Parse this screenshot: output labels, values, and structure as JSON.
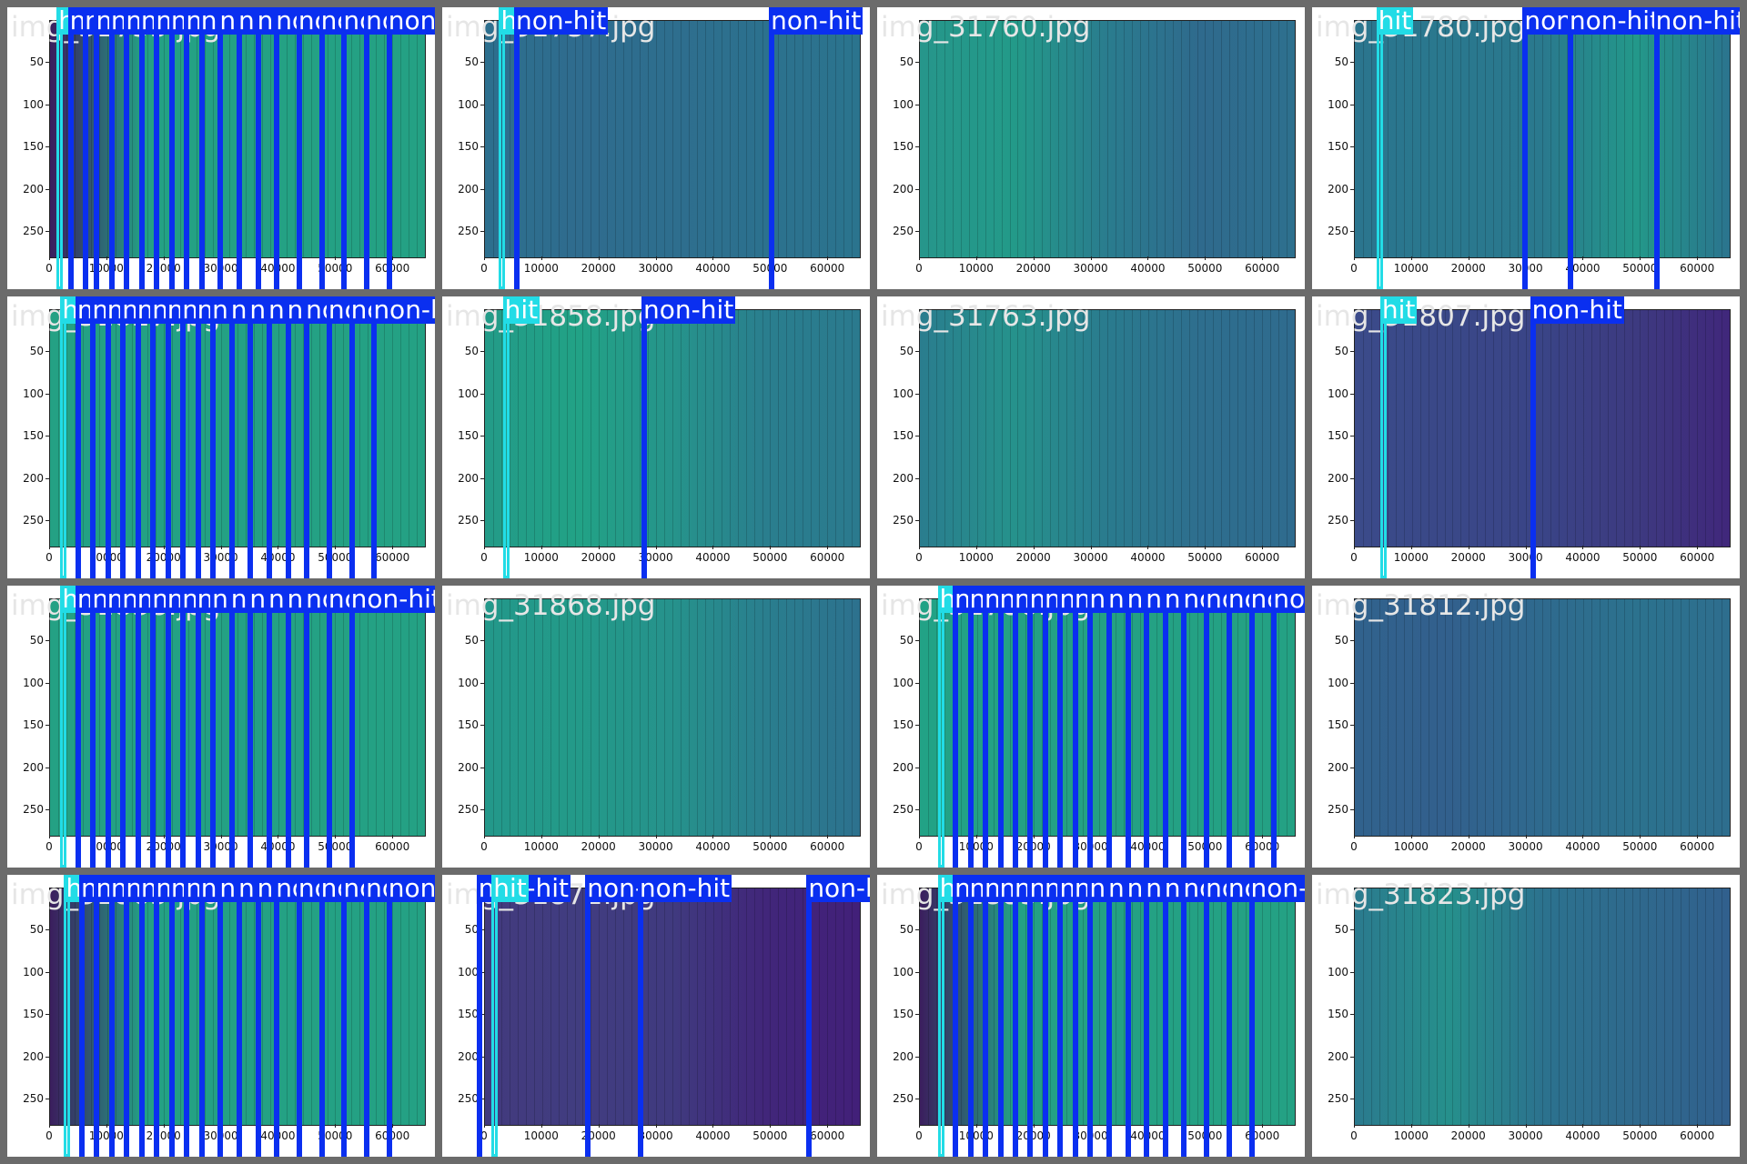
{
  "labels": {
    "hit": "hit",
    "non_hit": "non-hit"
  },
  "colors": {
    "hit": "#22dce6",
    "non_hit": "#0a2ff0",
    "frame": "#6b6b6b"
  },
  "axes": {
    "x_ticks": [
      "0",
      "10000",
      "20000",
      "30000",
      "40000",
      "50000",
      "60000"
    ],
    "y_ticks": [
      "50",
      "100",
      "150",
      "200",
      "250"
    ]
  },
  "tiles": [
    {
      "filename": "img_31755.jpg",
      "fill": [
        "#3b1e5e",
        "#24a184",
        "#24a184",
        "#24a184",
        "#24a184"
      ],
      "detections": [
        {
          "label": "hit",
          "x": 0.02
        },
        {
          "label": "non-hit",
          "x": 0.05
        },
        {
          "label": "non-hit",
          "x": 0.09
        },
        {
          "label": "non-hit",
          "x": 0.12
        },
        {
          "label": "non-hit",
          "x": 0.16
        },
        {
          "label": "non-hit",
          "x": 0.2
        },
        {
          "label": "non-hit",
          "x": 0.24
        },
        {
          "label": "non-hit",
          "x": 0.28
        },
        {
          "label": "non-hit",
          "x": 0.32
        },
        {
          "label": "non-hit",
          "x": 0.36
        },
        {
          "label": "non-hit",
          "x": 0.4
        },
        {
          "label": "non-hit",
          "x": 0.45
        },
        {
          "label": "non-hit",
          "x": 0.5
        },
        {
          "label": "non-hit",
          "x": 0.55
        },
        {
          "label": "non-hit",
          "x": 0.6
        },
        {
          "label": "non-hit",
          "x": 0.66
        },
        {
          "label": "non-hit",
          "x": 0.72
        },
        {
          "label": "non-hit",
          "x": 0.78
        },
        {
          "label": "non-hit",
          "x": 0.84
        },
        {
          "label": "non-hit",
          "x": 0.9
        }
      ]
    },
    {
      "filename": "img_31757.jpg",
      "fill": [
        "#2d6f8e",
        "#2f6c8e",
        "#2e6e8e",
        "#2c718e",
        "#2b748e"
      ],
      "detections": [
        {
          "label": "hit",
          "x": 0.04
        },
        {
          "label": "non-hit",
          "x": 0.08
        },
        {
          "label": "non-hit",
          "x": 0.76
        }
      ]
    },
    {
      "filename": "img_31760.jpg",
      "fill": [
        "#26968b",
        "#239a89",
        "#2a7c8e",
        "#2f6a8d",
        "#2e708e"
      ],
      "detections": []
    },
    {
      "filename": "img_31780.jpg",
      "fill": [
        "#2b758e",
        "#2a788e",
        "#2a798e",
        "#23988a",
        "#2b748e"
      ],
      "detections": [
        {
          "label": "hit",
          "x": 0.06
        },
        {
          "label": "non-hit",
          "x": 0.45
        },
        {
          "label": "non-hit",
          "x": 0.57
        },
        {
          "label": "non-hit",
          "x": 0.8
        }
      ]
    },
    {
      "filename": "img_31827.jpg",
      "fill": [
        "#24a184",
        "#24a184",
        "#24a184",
        "#24a184",
        "#24a184"
      ],
      "detections": [
        {
          "label": "hit",
          "x": 0.03
        },
        {
          "label": "non-hit",
          "x": 0.07
        },
        {
          "label": "non-hit",
          "x": 0.11
        },
        {
          "label": "non-hit",
          "x": 0.15
        },
        {
          "label": "non-hit",
          "x": 0.19
        },
        {
          "label": "non-hit",
          "x": 0.23
        },
        {
          "label": "non-hit",
          "x": 0.27
        },
        {
          "label": "non-hit",
          "x": 0.31
        },
        {
          "label": "non-hit",
          "x": 0.35
        },
        {
          "label": "non-hit",
          "x": 0.39
        },
        {
          "label": "non-hit",
          "x": 0.43
        },
        {
          "label": "non-hit",
          "x": 0.48
        },
        {
          "label": "non-hit",
          "x": 0.53
        },
        {
          "label": "non-hit",
          "x": 0.58
        },
        {
          "label": "non-hit",
          "x": 0.63
        },
        {
          "label": "non-hit",
          "x": 0.68
        },
        {
          "label": "non-hit",
          "x": 0.74
        },
        {
          "label": "non-hit",
          "x": 0.8
        },
        {
          "label": "non-hit",
          "x": 0.86
        }
      ]
    },
    {
      "filename": "img_31858.jpg",
      "fill": [
        "#239b88",
        "#22a286",
        "#26948b",
        "#2a7e8e",
        "#2b7a8e"
      ],
      "detections": [
        {
          "label": "hit",
          "x": 0.05
        },
        {
          "label": "non-hit",
          "x": 0.42
        }
      ]
    },
    {
      "filename": "img_31763.jpg",
      "fill": [
        "#2a7d8e",
        "#26928c",
        "#2a7b8e",
        "#2e6e8e",
        "#2f6b8e"
      ],
      "detections": []
    },
    {
      "filename": "img_31807.jpg",
      "fill": [
        "#3b4b8a",
        "#3a4888",
        "#3a4487",
        "#3d3a80",
        "#40277b"
      ],
      "detections": [
        {
          "label": "hit",
          "x": 0.07
        },
        {
          "label": "non-hit",
          "x": 0.47
        }
      ]
    },
    {
      "filename": "img_31838.jpg",
      "fill": [
        "#24a184",
        "#24a184",
        "#24a184",
        "#24a184",
        "#24a184"
      ],
      "detections": [
        {
          "label": "hit",
          "x": 0.03
        },
        {
          "label": "non-hit",
          "x": 0.07
        },
        {
          "label": "non-hit",
          "x": 0.11
        },
        {
          "label": "non-hit",
          "x": 0.15
        },
        {
          "label": "non-hit",
          "x": 0.19
        },
        {
          "label": "non-hit",
          "x": 0.23
        },
        {
          "label": "non-hit",
          "x": 0.27
        },
        {
          "label": "non-hit",
          "x": 0.31
        },
        {
          "label": "non-hit",
          "x": 0.35
        },
        {
          "label": "non-hit",
          "x": 0.39
        },
        {
          "label": "non-hit",
          "x": 0.43
        },
        {
          "label": "non-hit",
          "x": 0.48
        },
        {
          "label": "non-hit",
          "x": 0.53
        },
        {
          "label": "non-hit",
          "x": 0.58
        },
        {
          "label": "non-hit",
          "x": 0.63
        },
        {
          "label": "non-hit",
          "x": 0.68
        },
        {
          "label": "non-hit",
          "x": 0.74
        },
        {
          "label": "non-hit",
          "x": 0.8
        }
      ]
    },
    {
      "filename": "img_31868.jpg",
      "fill": [
        "#23988a",
        "#239a89",
        "#26928c",
        "#2a7e8e",
        "#2d718e"
      ],
      "detections": []
    },
    {
      "filename": "img_31786.jpg",
      "fill": [
        "#22a286",
        "#24a184",
        "#24a184",
        "#24a184",
        "#24a184"
      ],
      "detections": [
        {
          "label": "hit",
          "x": 0.05
        },
        {
          "label": "non-hit",
          "x": 0.09
        },
        {
          "label": "non-hit",
          "x": 0.13
        },
        {
          "label": "non-hit",
          "x": 0.17
        },
        {
          "label": "non-hit",
          "x": 0.21
        },
        {
          "label": "non-hit",
          "x": 0.25
        },
        {
          "label": "non-hit",
          "x": 0.29
        },
        {
          "label": "non-hit",
          "x": 0.33
        },
        {
          "label": "non-hit",
          "x": 0.37
        },
        {
          "label": "non-hit",
          "x": 0.41
        },
        {
          "label": "non-hit",
          "x": 0.45
        },
        {
          "label": "non-hit",
          "x": 0.5
        },
        {
          "label": "non-hit",
          "x": 0.55
        },
        {
          "label": "non-hit",
          "x": 0.6
        },
        {
          "label": "non-hit",
          "x": 0.65
        },
        {
          "label": "non-hit",
          "x": 0.7
        },
        {
          "label": "non-hit",
          "x": 0.76
        },
        {
          "label": "non-hit",
          "x": 0.82
        },
        {
          "label": "non-hit",
          "x": 0.88
        },
        {
          "label": "non-hit",
          "x": 0.94
        }
      ]
    },
    {
      "filename": "img_31812.jpg",
      "fill": [
        "#31628d",
        "#32608d",
        "#2f6a8e",
        "#2c728e",
        "#2e6e8e"
      ],
      "detections": []
    },
    {
      "filename": "img_31865.jpg",
      "fill": [
        "#3b1e5e",
        "#24a184",
        "#24a184",
        "#24a184",
        "#24a184"
      ],
      "detections": [
        {
          "label": "hit",
          "x": 0.04
        },
        {
          "label": "non-hit",
          "x": 0.08
        },
        {
          "label": "non-hit",
          "x": 0.12
        },
        {
          "label": "non-hit",
          "x": 0.16
        },
        {
          "label": "non-hit",
          "x": 0.2
        },
        {
          "label": "non-hit",
          "x": 0.24
        },
        {
          "label": "non-hit",
          "x": 0.28
        },
        {
          "label": "non-hit",
          "x": 0.32
        },
        {
          "label": "non-hit",
          "x": 0.36
        },
        {
          "label": "non-hit",
          "x": 0.4
        },
        {
          "label": "non-hit",
          "x": 0.45
        },
        {
          "label": "non-hit",
          "x": 0.5
        },
        {
          "label": "non-hit",
          "x": 0.55
        },
        {
          "label": "non-hit",
          "x": 0.6
        },
        {
          "label": "non-hit",
          "x": 0.66
        },
        {
          "label": "non-hit",
          "x": 0.72
        },
        {
          "label": "non-hit",
          "x": 0.78
        },
        {
          "label": "non-hit",
          "x": 0.84
        },
        {
          "label": "non-hit",
          "x": 0.9
        }
      ]
    },
    {
      "filename": "img_31872.jpg",
      "fill": [
        "#423a7e",
        "#413d80",
        "#403a7f",
        "#41267a",
        "#422079"
      ],
      "detections": [
        {
          "label": "non-hit",
          "x": -0.02
        },
        {
          "label": "hit",
          "x": 0.02
        },
        {
          "label": "non-hit",
          "x": 0.27
        },
        {
          "label": "non-hit",
          "x": 0.41
        },
        {
          "label": "non-hit",
          "x": 0.86
        }
      ]
    },
    {
      "filename": "img_31885.jpg",
      "fill": [
        "#3b1e5e",
        "#24a184",
        "#24a184",
        "#24a184",
        "#24a184"
      ],
      "detections": [
        {
          "label": "hit",
          "x": 0.05
        },
        {
          "label": "non-hit",
          "x": 0.09
        },
        {
          "label": "non-hit",
          "x": 0.13
        },
        {
          "label": "non-hit",
          "x": 0.17
        },
        {
          "label": "non-hit",
          "x": 0.21
        },
        {
          "label": "non-hit",
          "x": 0.25
        },
        {
          "label": "non-hit",
          "x": 0.29
        },
        {
          "label": "non-hit",
          "x": 0.33
        },
        {
          "label": "non-hit",
          "x": 0.37
        },
        {
          "label": "non-hit",
          "x": 0.41
        },
        {
          "label": "non-hit",
          "x": 0.45
        },
        {
          "label": "non-hit",
          "x": 0.5
        },
        {
          "label": "non-hit",
          "x": 0.55
        },
        {
          "label": "non-hit",
          "x": 0.6
        },
        {
          "label": "non-hit",
          "x": 0.65
        },
        {
          "label": "non-hit",
          "x": 0.7
        },
        {
          "label": "non-hit",
          "x": 0.76
        },
        {
          "label": "non-hit",
          "x": 0.82
        },
        {
          "label": "non-hit",
          "x": 0.88
        }
      ]
    },
    {
      "filename": "img_31823.jpg",
      "fill": [
        "#2b7a8e",
        "#26908c",
        "#2c728e",
        "#2f698d",
        "#31608d"
      ],
      "detections": []
    }
  ]
}
